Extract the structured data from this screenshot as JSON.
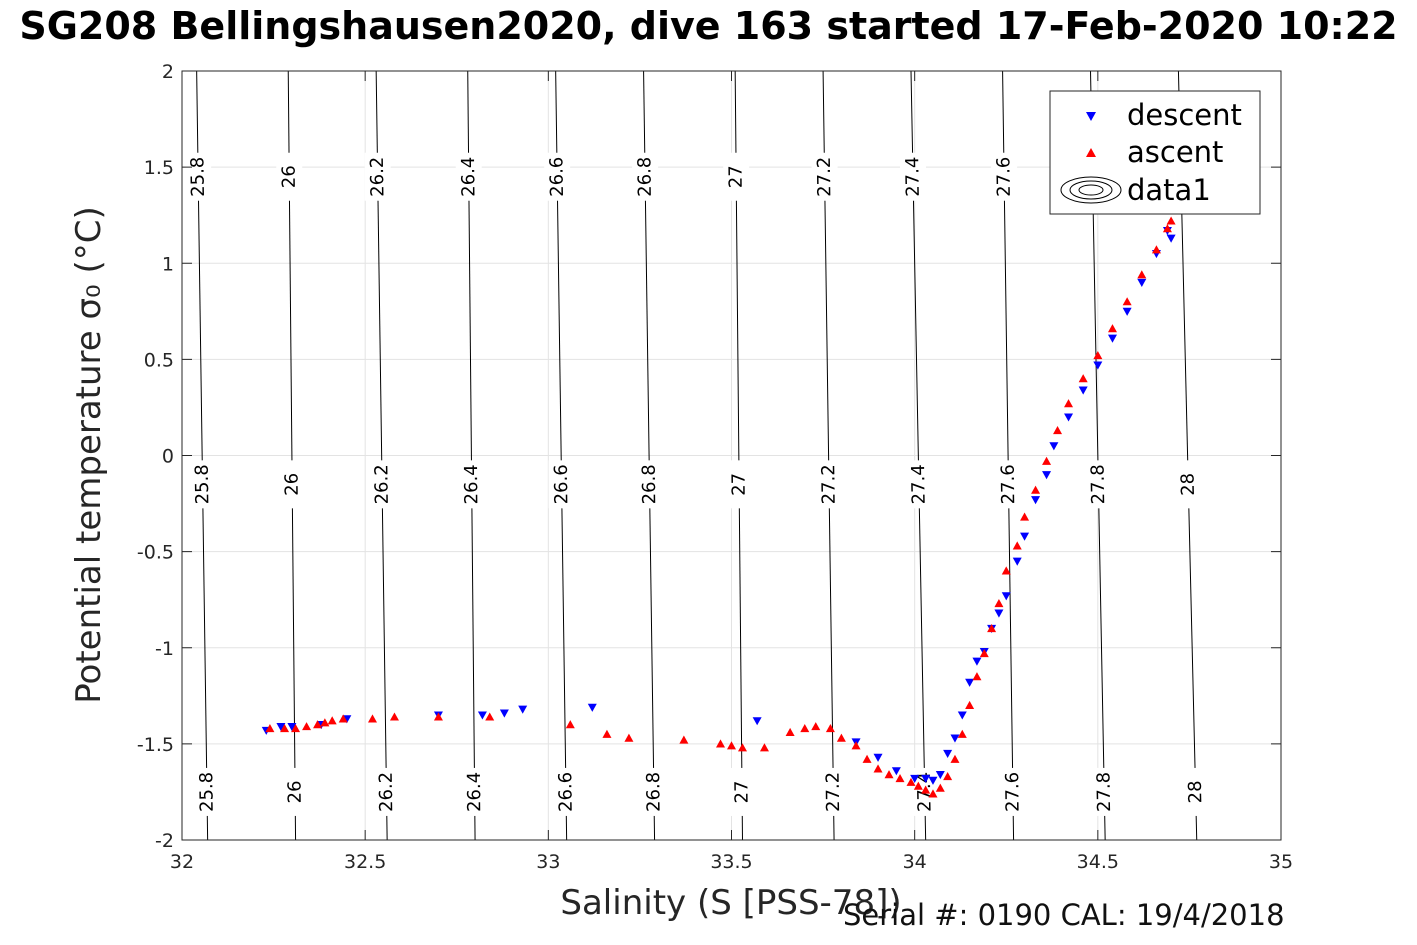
{
  "title": "SG208 Bellingshausen2020, dive 163 started 17-Feb-2020 10:22",
  "footer": "Serial #: 0190  CAL: 19/4/2018",
  "chart_data": {
    "type": "scatter",
    "xlabel": "Salinity (S [PSS-78])",
    "ylabel": "Potential temperature σ₀ (°C)",
    "xlim": [
      32,
      35
    ],
    "ylim": [
      -2,
      2
    ],
    "xticks": [
      32,
      32.5,
      33,
      33.5,
      34,
      34.5,
      35
    ],
    "yticks": [
      -2,
      -1.5,
      -1,
      -0.5,
      0,
      0.5,
      1,
      1.5,
      2
    ],
    "grid": true,
    "legend": {
      "placement": "top-right",
      "entries": [
        "descent",
        "ascent",
        "data1"
      ]
    },
    "isopycnals": {
      "levels": [
        25.8,
        26,
        26.2,
        26.4,
        26.6,
        26.8,
        27,
        27.2,
        27.4,
        27.6,
        27.8,
        28
      ],
      "s_at_tmin": [
        32.07,
        32.31,
        32.56,
        32.8,
        33.05,
        33.29,
        33.53,
        33.78,
        34.03,
        34.27,
        34.52,
        34.77
      ],
      "s_at_tmax": [
        32.04,
        32.29,
        32.53,
        32.78,
        33.02,
        33.26,
        33.51,
        33.75,
        33.99,
        34.24,
        34.48,
        34.72
      ],
      "color": "#000000"
    },
    "series": [
      {
        "name": "descent",
        "color": "#0000ff",
        "marker": "triangle-down",
        "x": [
          32.23,
          32.27,
          32.3,
          32.38,
          32.45,
          32.7,
          32.82,
          32.88,
          32.93,
          33.12,
          33.57,
          33.84,
          33.9,
          33.95,
          34.0,
          34.03,
          34.05,
          34.07,
          34.09,
          34.11,
          34.13,
          34.15,
          34.17,
          34.19,
          34.21,
          34.23,
          34.25,
          34.28,
          34.3,
          34.33,
          34.36,
          34.38,
          34.42,
          34.46,
          34.5,
          34.54,
          34.58,
          34.62,
          34.66,
          34.69,
          34.7
        ],
        "y": [
          -1.43,
          -1.41,
          -1.41,
          -1.4,
          -1.37,
          -1.35,
          -1.35,
          -1.34,
          -1.32,
          -1.31,
          -1.38,
          -1.49,
          -1.57,
          -1.64,
          -1.68,
          -1.68,
          -1.69,
          -1.66,
          -1.55,
          -1.47,
          -1.35,
          -1.18,
          -1.07,
          -1.02,
          -0.9,
          -0.82,
          -0.73,
          -0.55,
          -0.42,
          -0.23,
          -0.1,
          0.05,
          0.2,
          0.34,
          0.47,
          0.61,
          0.75,
          0.9,
          1.05,
          1.17,
          1.13
        ]
      },
      {
        "name": "ascent",
        "color": "#ff0000",
        "marker": "triangle-up",
        "x": [
          32.24,
          32.28,
          32.31,
          32.34,
          32.37,
          32.39,
          32.41,
          32.44,
          32.52,
          32.58,
          32.7,
          32.84,
          33.06,
          33.16,
          33.22,
          33.37,
          33.47,
          33.5,
          33.53,
          33.59,
          33.66,
          33.7,
          33.73,
          33.77,
          33.8,
          33.84,
          33.87,
          33.9,
          33.93,
          33.96,
          33.99,
          34.01,
          34.03,
          34.05,
          34.07,
          34.09,
          34.11,
          34.13,
          34.15,
          34.17,
          34.19,
          34.21,
          34.23,
          34.25,
          34.28,
          34.3,
          34.33,
          34.36,
          34.39,
          34.42,
          34.46,
          34.5,
          34.54,
          34.58,
          34.62,
          34.66,
          34.69,
          34.7
        ],
        "y": [
          -1.42,
          -1.42,
          -1.42,
          -1.41,
          -1.4,
          -1.39,
          -1.38,
          -1.37,
          -1.37,
          -1.36,
          -1.36,
          -1.36,
          -1.4,
          -1.45,
          -1.47,
          -1.48,
          -1.5,
          -1.51,
          -1.52,
          -1.52,
          -1.44,
          -1.42,
          -1.41,
          -1.42,
          -1.47,
          -1.51,
          -1.58,
          -1.63,
          -1.66,
          -1.68,
          -1.7,
          -1.72,
          -1.74,
          -1.76,
          -1.73,
          -1.67,
          -1.58,
          -1.45,
          -1.3,
          -1.15,
          -1.03,
          -0.9,
          -0.77,
          -0.6,
          -0.47,
          -0.32,
          -0.18,
          -0.03,
          0.13,
          0.27,
          0.4,
          0.52,
          0.66,
          0.8,
          0.94,
          1.07,
          1.18,
          1.22
        ]
      }
    ]
  }
}
